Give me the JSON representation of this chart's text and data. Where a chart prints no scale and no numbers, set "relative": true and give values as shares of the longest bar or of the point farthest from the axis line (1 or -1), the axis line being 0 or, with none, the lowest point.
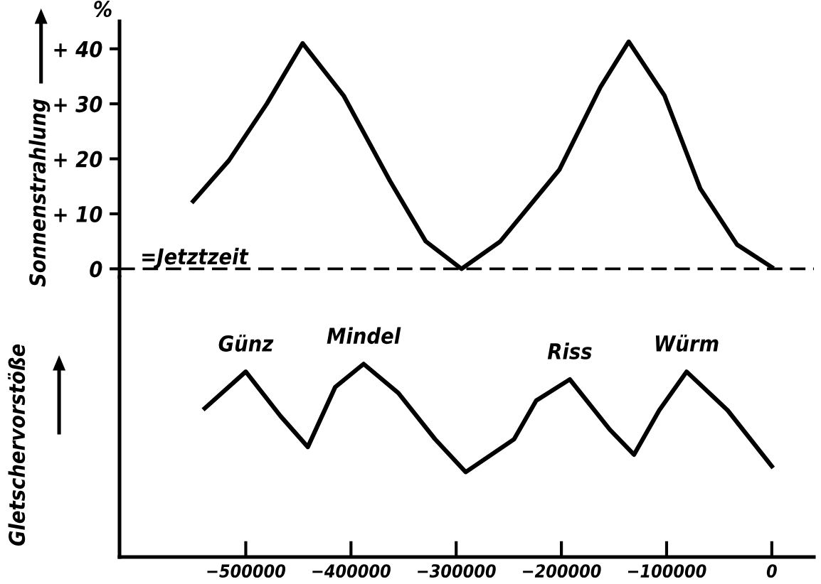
{
  "chart_data": [
    {
      "type": "line",
      "ylabel": "Sonnenstrahlung",
      "annotations": [
        "%"
      ],
      "tick_labels": "y",
      "grid": false,
      "legend": false,
      "marker": "none",
      "line_style": "solid",
      "xlim": [
        -620000,
        40000
      ],
      "ylim": [
        -1.5,
        45
      ],
      "yticks": [
        {
          "value": 0,
          "label": "0"
        },
        {
          "value": 10,
          "label": "+ 10"
        },
        {
          "value": 20,
          "label": "+ 20"
        },
        {
          "value": 30,
          "label": "+ 30"
        },
        {
          "value": 40,
          "label": "+ 40"
        }
      ],
      "ref_lines": [
        {
          "axis": "y",
          "value": 0,
          "label": "=Jetztzeit",
          "line_style": "dashed",
          "color": "#000000"
        }
      ],
      "series": [
        {
          "color": "#000000",
          "x": [
            -550000,
            -516000,
            -480000,
            -446000,
            -407000,
            -363000,
            -329000,
            -295000,
            -258000,
            -202000,
            -163000,
            -136000,
            -102000,
            -68000,
            -33000,
            0
          ],
          "values": [
            12.3,
            19.7,
            30,
            41,
            31.5,
            16,
            5,
            0,
            5,
            18,
            33,
            41.3,
            31.5,
            14.6,
            4.4,
            0.3
          ]
        }
      ]
    },
    {
      "type": "line",
      "relative": true,
      "ylabel": "Gletschervorstöße",
      "tick_labels": "x",
      "grid": false,
      "legend": false,
      "marker": "none",
      "line_style": "solid",
      "xlim": [
        -620000,
        40000
      ],
      "xticks": [
        {
          "value": -500000,
          "label": "−500000"
        },
        {
          "value": -400000,
          "label": "−400000"
        },
        {
          "value": -300000,
          "label": "−300000"
        },
        {
          "value": -200000,
          "label": "−200000"
        },
        {
          "value": -100000,
          "label": "−100000"
        },
        0
      ],
      "annotations": [
        {
          "text": "Günz",
          "x": -500000,
          "y": 0.96
        },
        {
          "text": "Mindel",
          "x": -388000,
          "y": 1.0
        },
        {
          "text": "Riss",
          "x": -192000,
          "y": 0.92
        },
        {
          "text": "Würm",
          "x": -81000,
          "y": 0.96
        }
      ],
      "series": [
        {
          "color": "#000000",
          "x": [
            -539000,
            -500000,
            -467000,
            -441000,
            -415000,
            -388000,
            -355000,
            -320000,
            -291000,
            -245000,
            -224000,
            -192000,
            -154000,
            -131000,
            -107000,
            -81000,
            -42000,
            0
          ],
          "values": [
            0.77,
            0.96,
            0.73,
            0.57,
            0.88,
            1.0,
            0.85,
            0.61,
            0.44,
            0.61,
            0.81,
            0.92,
            0.66,
            0.53,
            0.76,
            0.96,
            0.76,
            0.47
          ]
        }
      ]
    }
  ]
}
